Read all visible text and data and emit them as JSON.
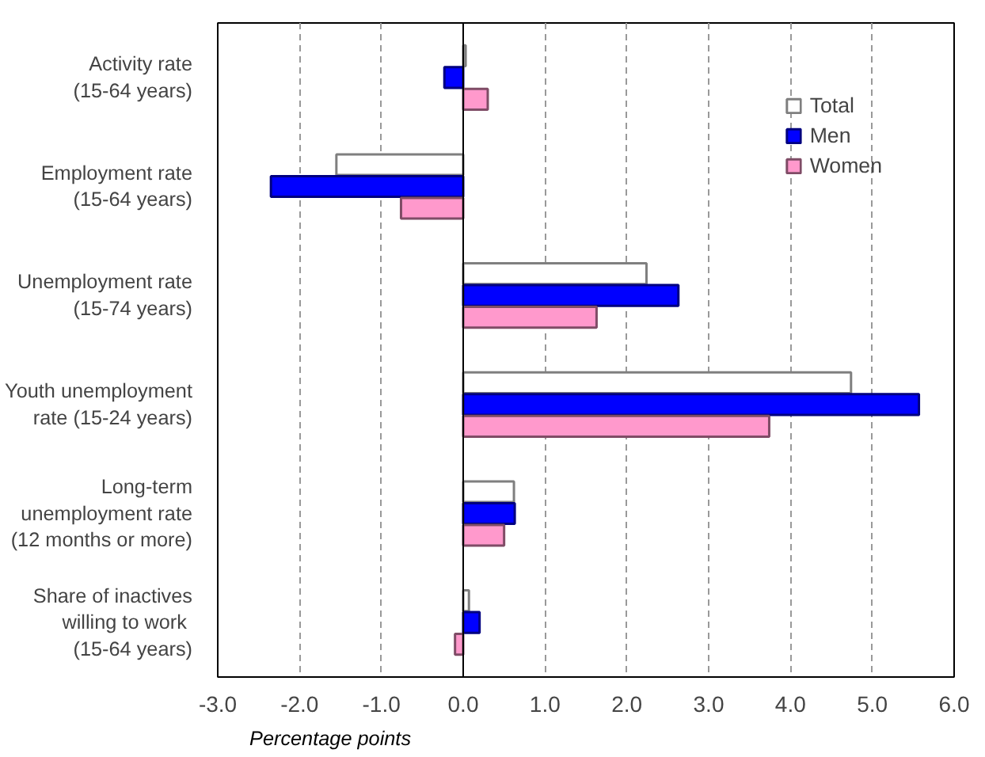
{
  "chart_data": {
    "type": "bar",
    "orientation": "horizontal",
    "categories": [
      "Activity rate\n(15-64 years)",
      "Employment rate\n(15-64 years)",
      "Unemployment rate\n(15-74 years)",
      "Youth unemployment\nrate (15-24 years)",
      "Long-term\nunemployment rate\n(12 months or more)",
      "Share of inactives\nwilling to  work\n(15-64 years)"
    ],
    "series": [
      {
        "name": "Total",
        "color": "#ffffff",
        "values": [
          0.03,
          -1.55,
          2.24,
          4.74,
          0.62,
          0.07
        ]
      },
      {
        "name": "Men",
        "color": "#0000ff",
        "values": [
          -0.23,
          -2.35,
          2.63,
          5.57,
          0.63,
          0.2
        ]
      },
      {
        "name": "Women",
        "color": "#ff99cc",
        "values": [
          0.3,
          -0.76,
          1.63,
          3.74,
          0.5,
          -0.1
        ]
      }
    ],
    "xlabel": "Percentage points",
    "xlim": [
      -3,
      6
    ],
    "xticks": [
      {
        "value": -3,
        "label": "-3.0"
      },
      {
        "value": -2,
        "label": "-2.0"
      },
      {
        "value": -1,
        "label": "-1.0"
      },
      {
        "value": 0,
        "label": "0.0"
      },
      {
        "value": 1,
        "label": "1.0"
      },
      {
        "value": 2,
        "label": "2.0"
      },
      {
        "value": 3,
        "label": "3.0"
      },
      {
        "value": 4,
        "label": "4.0"
      },
      {
        "value": 5,
        "label": "5.0"
      },
      {
        "value": 6,
        "label": "6.0"
      }
    ],
    "grid": "x",
    "legend": "top right"
  }
}
